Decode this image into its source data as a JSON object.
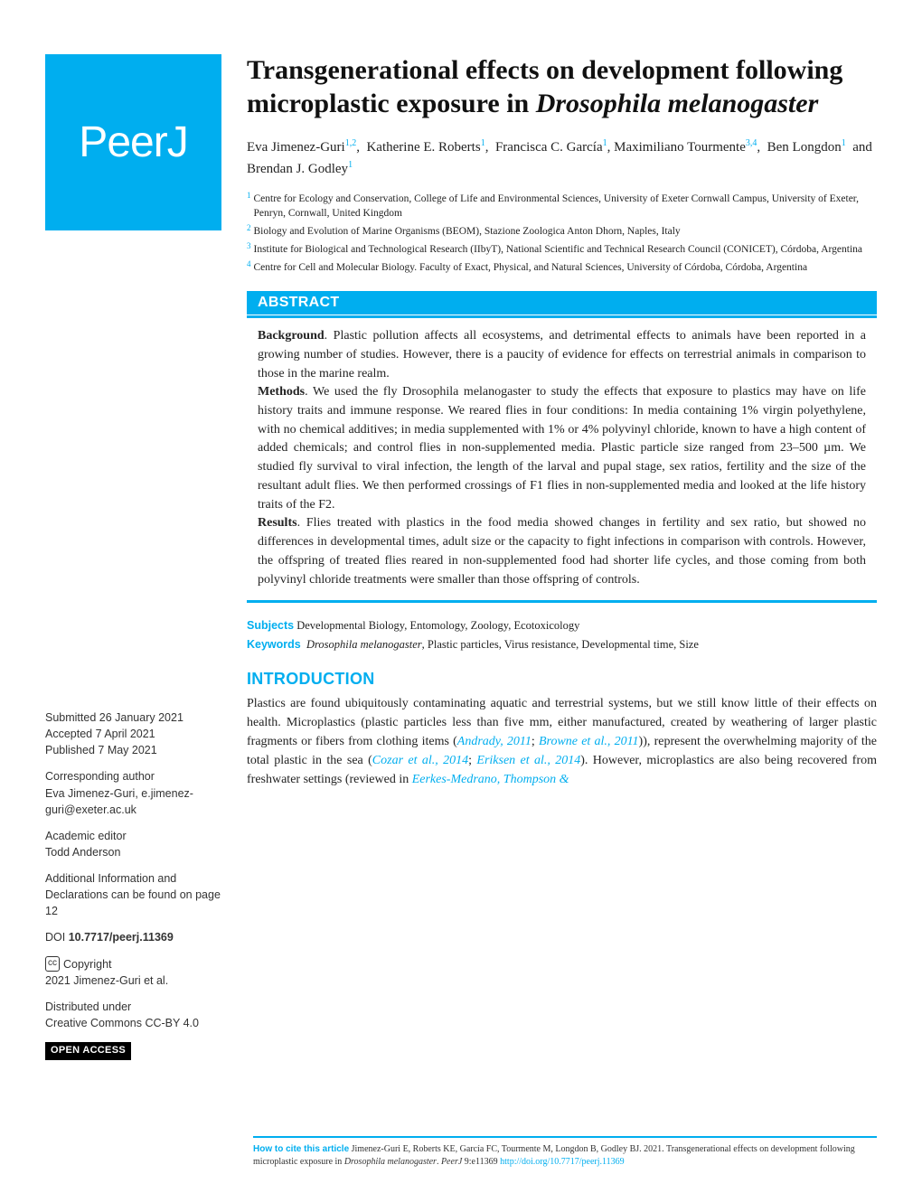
{
  "logo": "PeerJ",
  "title_main": "Transgenerational effects on development following microplastic exposure in ",
  "title_species": "Drosophila melanogaster",
  "authors": [
    {
      "name": "Eva Jimenez-Guri",
      "sup": "1,2"
    },
    {
      "name": "Katherine E. Roberts",
      "sup": "1"
    },
    {
      "name": "Francisca C. García",
      "sup": "1"
    },
    {
      "name": "Maximiliano Tourmente",
      "sup": "3,4"
    },
    {
      "name": "Ben Longdon",
      "sup": "1"
    },
    {
      "name": "Brendan J. Godley",
      "sup": "1"
    }
  ],
  "affiliations": [
    {
      "num": "1",
      "text": "Centre for Ecology and Conservation, College of Life and Environmental Sciences, University of Exeter Cornwall Campus, University of Exeter, Penryn, Cornwall, United Kingdom"
    },
    {
      "num": "2",
      "text": "Biology and Evolution of Marine Organisms (BEOM), Stazione Zoologica Anton Dhorn, Naples, Italy"
    },
    {
      "num": "3",
      "text": "Institute for Biological and Technological Research (IIbyT), National Scientific and Technical Research Council (CONICET), Córdoba, Argentina"
    },
    {
      "num": "4",
      "text": "Centre for Cell and Molecular Biology. Faculty of Exact, Physical, and Natural Sciences, University of Córdoba, Córdoba, Argentina"
    }
  ],
  "abstract_label": "ABSTRACT",
  "abstract": {
    "background_label": "Background",
    "background": ". Plastic pollution affects all ecosystems, and detrimental effects to animals have been reported in a growing number of studies. However, there is a paucity of evidence for effects on terrestrial animals in comparison to those in the marine realm.",
    "methods_label": "Methods",
    "methods": ". We used the fly Drosophila melanogaster to study the effects that exposure to plastics may have on life history traits and immune response. We reared flies in four conditions: In media containing 1% virgin polyethylene, with no chemical additives; in media supplemented with 1% or 4% polyvinyl chloride, known to have a high content of added chemicals; and control flies in non-supplemented media. Plastic particle size ranged from 23–500 µm. We studied fly survival to viral infection, the length of the larval and pupal stage, sex ratios, fertility and the size of the resultant adult flies. We then performed crossings of F1 flies in non-supplemented media and looked at the life history traits of the F2.",
    "results_label": "Results",
    "results": ". Flies treated with plastics in the food media showed changes in fertility and sex ratio, but showed no differences in developmental times, adult size or the capacity to fight infections in comparison with controls. However, the offspring of treated flies reared in non-supplemented food had shorter life cycles, and those coming from both polyvinyl chloride treatments were smaller than those offspring of controls."
  },
  "subjects_label": "Subjects",
  "subjects": "Developmental Biology, Entomology, Zoology, Ecotoxicology",
  "keywords_label": "Keywords",
  "keywords_species": "Drosophila melanogaster",
  "keywords_rest": ", Plastic particles, Virus resistance, Developmental time, Size",
  "intro_heading": "INTRODUCTION",
  "intro_text_1": "Plastics are found ubiquitously contaminating aquatic and terrestrial systems, but we still know little of their effects on health. Microplastics (plastic particles less than five mm, either manufactured, created by weathering of larger plastic fragments or fibers from clothing items (",
  "cite_1": "Andrady, 2011",
  "intro_sep_1": "; ",
  "cite_2": "Browne et al., 2011",
  "intro_text_2": ")), represent the overwhelming majority of the total plastic in the sea (",
  "cite_3": "Cozar et al., 2014",
  "intro_sep_2": "; ",
  "cite_4": "Eriksen et al., 2014",
  "intro_text_3": "). However, microplastics are also being recovered from freshwater settings (reviewed in ",
  "cite_5": "Eerkes-Medrano, Thompson &",
  "sidebar": {
    "submitted_label": "Submitted",
    "submitted": "26 January 2021",
    "accepted_label": "Accepted",
    "accepted": "7 April 2021",
    "published_label": "Published",
    "published": "7 May 2021",
    "corr_heading": "Corresponding author",
    "corr_text": "Eva Jimenez-Guri, e.jimenez-guri@exeter.ac.uk",
    "editor_heading": "Academic editor",
    "editor": "Todd Anderson",
    "additional": "Additional Information and Declarations can be found on page 12",
    "doi_label": "DOI",
    "doi": "10.7717/peerj.11369",
    "copyright_label": "Copyright",
    "copyright": "2021 Jimenez-Guri et al.",
    "dist_heading": "Distributed under",
    "dist": "Creative Commons CC-BY 4.0",
    "open_access": "OPEN ACCESS"
  },
  "footer": {
    "howto_label": "How to cite this article",
    "text_1": " Jimenez-Guri E, Roberts KE, García FC, Tourmente M, Longdon B, Godley BJ. 2021. Transgenerational effects on development following microplastic exposure in ",
    "species": "Drosophila melanogaster",
    "text_2": ". ",
    "journal": "PeerJ",
    "text_3": " 9:e11369 ",
    "link": "http://doi.org/10.7717/peerj.11369"
  },
  "colors": {
    "accent": "#00aeef",
    "text": "#222222",
    "background": "#ffffff"
  }
}
